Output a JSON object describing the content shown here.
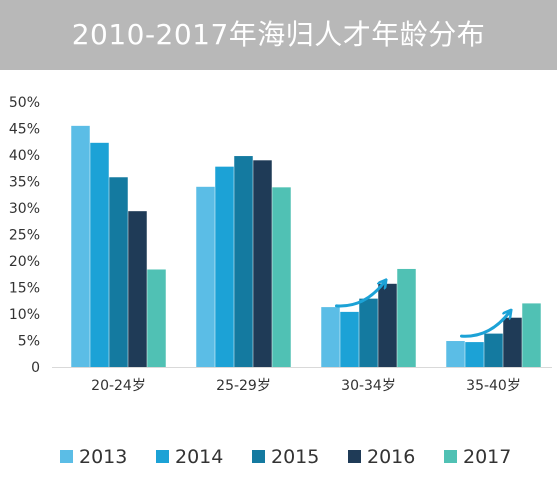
{
  "header": {
    "title": "2010-2017年海归人才年龄分布"
  },
  "chart_data": {
    "type": "bar",
    "title": "2010-2017年海归人才年龄分布",
    "xlabel": "",
    "ylabel": "",
    "categories": [
      "20-24岁",
      "25-29岁",
      "30-34岁",
      "35-40岁"
    ],
    "ylim": [
      0,
      50
    ],
    "y_ticks": [
      "0",
      "5%",
      "10%",
      "15%",
      "20%",
      "25%",
      "30%",
      "35%",
      "40%",
      "45%",
      "50%"
    ],
    "grid": false,
    "legend_position": "bottom",
    "series": [
      {
        "name": "2013",
        "color": "#5bbde6",
        "values": [
          45.5,
          34.0,
          11.3,
          4.9
        ]
      },
      {
        "name": "2014",
        "color": "#1ca2d6",
        "values": [
          42.3,
          37.8,
          10.4,
          4.7
        ]
      },
      {
        "name": "2015",
        "color": "#147aa0",
        "values": [
          35.8,
          39.8,
          12.9,
          6.3
        ]
      },
      {
        "name": "2016",
        "color": "#1f3b57",
        "values": [
          29.4,
          39.0,
          15.7,
          9.3
        ]
      },
      {
        "name": "2017",
        "color": "#50c1b4",
        "values": [
          18.4,
          33.9,
          18.5,
          12.0
        ]
      }
    ],
    "annotations": [
      {
        "type": "arrow",
        "color": "#1ca2d6",
        "category": "30-34岁"
      },
      {
        "type": "arrow",
        "color": "#1ca2d6",
        "category": "35-40岁"
      }
    ]
  }
}
